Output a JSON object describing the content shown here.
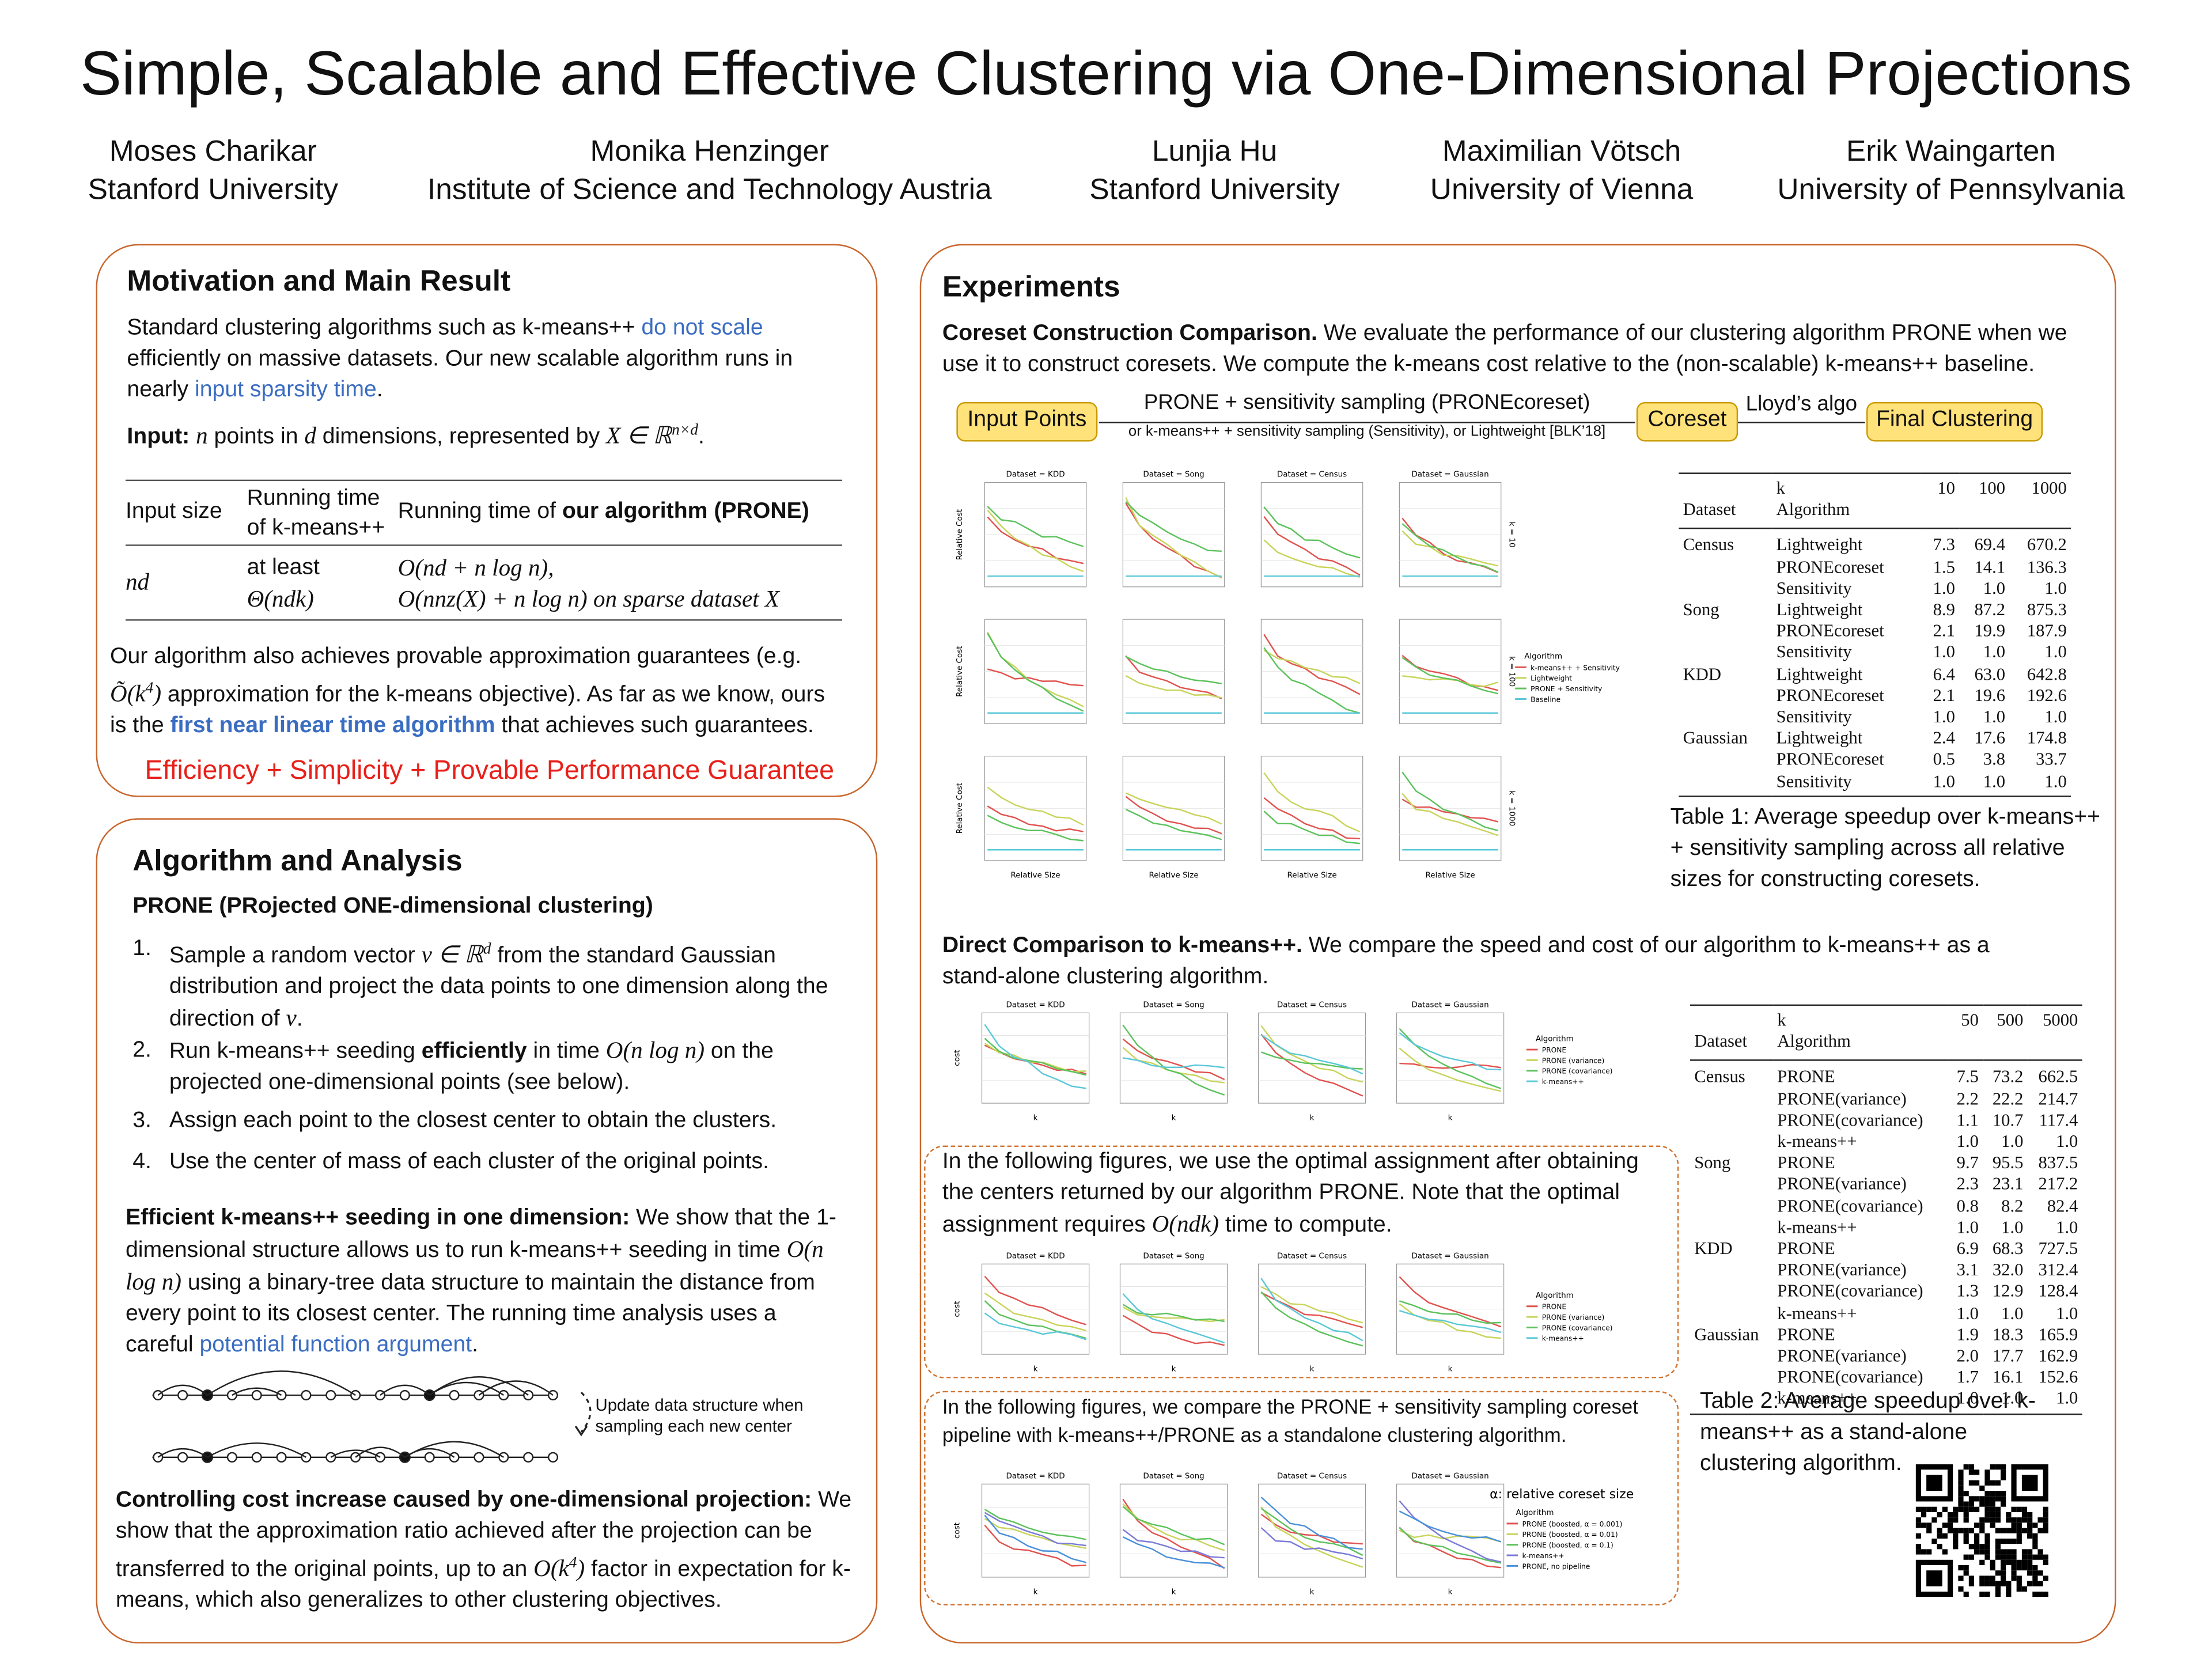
{
  "title": "Simple, Scalable and Effective Clustering via One-Dimensional Projections",
  "authors": [
    {
      "name": "Moses Charikar",
      "affiliation": "Stanford University"
    },
    {
      "name": "Monika Henzinger",
      "affiliation": "Institute of Science and Technology Austria"
    },
    {
      "name": "Lunjia Hu",
      "affiliation": "Stanford University"
    },
    {
      "name": "Maximilian Vötsch",
      "affiliation": "University of Vienna"
    },
    {
      "name": "Erik Waingarten",
      "affiliation": "University of Pennsylvania"
    }
  ],
  "motivation": {
    "heading": "Motivation and Main Result",
    "intro": [
      "Standard clustering algorithms such as k-means++ ",
      "do not scale",
      " efficiently on massive datasets. Our new scalable algorithm runs in nearly ",
      "input sparsity time",
      "."
    ],
    "input": [
      "Input: ",
      "n",
      " points in ",
      "d",
      " dimensions, represented by ",
      "X ∈ ℝ",
      "n×d",
      "."
    ],
    "runtime_table": {
      "header": [
        [
          "Input size"
        ],
        [
          "Running time",
          "of k-means++"
        ],
        [
          "Running time of ",
          "our algorithm (PRONE)"
        ]
      ],
      "row": [
        [
          "nd"
        ],
        [
          "at least",
          "Θ(ndk)"
        ],
        [
          "O(nd + n log n),",
          "O(nnz(X) + n log n) on sparse dataset X"
        ]
      ]
    },
    "guarantee": [
      "Our algorithm also achieves provable approximation guarantees (e.g. ",
      "Õ(k",
      "4",
      ")",
      " approximation for the k-means objective). As far as we know, ours is the ",
      "first near linear time algorithm",
      " that achieves such guarantees."
    ],
    "tagline": "Efficiency + Simplicity + Provable Performance Guarantee"
  },
  "algorithm": {
    "heading": "Algorithm and Analysis",
    "subheading": "PRONE (PRojected ONE-dimensional clustering)",
    "steps": [
      {
        "marker": "1.",
        "parts": [
          "Sample a random vector ",
          "v ∈ ℝ",
          "d",
          " from the standard Gaussian distribution and project the data points to one dimension along the direction of ",
          "v",
          "."
        ]
      },
      {
        "marker": "2.",
        "parts": [
          "Run k-means++ seeding ",
          "efficiently",
          " in time ",
          "O(n log n)",
          " on the projected one-dimensional points (see below)."
        ]
      },
      {
        "marker": "3.",
        "parts": [
          "Assign each point to the closest center to obtain the clusters."
        ]
      },
      {
        "marker": "4.",
        "parts": [
          "Use the center of mass of each cluster of the original points."
        ]
      }
    ],
    "efficient": [
      "Efficient k-means++ seeding in one dimension:",
      " We show that the 1-dimensional structure allows us to run k-means++ seeding in time ",
      "O(n log n)",
      " using a binary-tree data structure to maintain the distance from every point to its closest center. The running time analysis uses a careful ",
      "potential function argument",
      "."
    ],
    "diagram_note": "Update data structure when sampling each new center",
    "controlling": [
      "Controlling cost increase caused by one-dimensional projection:",
      " We show that the approximation ratio achieved after the projection can be transferred to the original points, up to an ",
      "O(k",
      "4",
      ")",
      " factor in expectation for k-means, which also generalizes to other clustering objectives."
    ]
  },
  "experiments": {
    "heading": "Experiments",
    "coreset": [
      "Coreset Construction Comparison.",
      " We evaluate the performance of our clustering algorithm PRONE when we use it to construct coresets. We compute the k-means cost relative to the (non-scalable) k-means++ baseline."
    ],
    "pipeline": {
      "input": "Input Points",
      "step1": "PRONE + sensitivity sampling (PRONEcoreset)",
      "step1_alt": "or k-means++ + sensitivity sampling (Sensitivity), or Lightweight [BLK’18]",
      "coreset": "Coreset",
      "step2": "Lloyd’s algo",
      "output": "Final Clustering"
    },
    "figure1": {
      "panel_titles": [
        "Dataset = KDD",
        "Dataset = Song",
        "Dataset = Census",
        "Dataset = Gaussian"
      ],
      "row_labels": [
        "k = 10",
        "k = 100",
        "k = 1000"
      ],
      "xlabel": "Relative Size",
      "ylabel": "Relative Cost",
      "legend_title": "Algorithm",
      "legend": [
        "k-means++ + Sensitivity",
        "Lightweight",
        "PRONE + Sensitivity",
        "Baseline"
      ]
    },
    "table1": {
      "k_label": "k",
      "ks": [
        "10",
        "100",
        "1000"
      ],
      "dataset_label": "Dataset",
      "algorithm_label": "Algorithm",
      "groups": [
        {
          "dataset": "Census",
          "rows": [
            [
              "Lightweight",
              "7.3",
              "69.4",
              "670.2"
            ],
            [
              "PRONEcoreset",
              "1.5",
              "14.1",
              "136.3"
            ],
            [
              "Sensitivity",
              "1.0",
              "1.0",
              "1.0"
            ]
          ]
        },
        {
          "dataset": "Song",
          "rows": [
            [
              "Lightweight",
              "8.9",
              "87.2",
              "875.3"
            ],
            [
              "PRONEcoreset",
              "2.1",
              "19.9",
              "187.9"
            ],
            [
              "Sensitivity",
              "1.0",
              "1.0",
              "1.0"
            ]
          ]
        },
        {
          "dataset": "KDD",
          "rows": [
            [
              "Lightweight",
              "6.4",
              "63.0",
              "642.8"
            ],
            [
              "PRONEcoreset",
              "2.1",
              "19.6",
              "192.6"
            ],
            [
              "Sensitivity",
              "1.0",
              "1.0",
              "1.0"
            ]
          ]
        },
        {
          "dataset": "Gaussian",
          "rows": [
            [
              "Lightweight",
              "2.4",
              "17.6",
              "174.8"
            ],
            [
              "PRONEcoreset",
              "0.5",
              "3.8",
              "33.7"
            ],
            [
              "Sensitivity",
              "1.0",
              "1.0",
              "1.0"
            ]
          ]
        }
      ]
    },
    "caption1": "Table 1: Average speedup over k-means++ + sensitivity sampling across all relative sizes for constructing coresets.",
    "direct": [
      "Direct Comparison to k-means++.",
      " We compare the speed and cost of our algorithm to k-means++ as a stand-alone clustering algorithm."
    ],
    "figure2": {
      "panel_titles": [
        "Dataset = KDD",
        "Dataset = Song",
        "Dataset = Census",
        "Dataset = Gaussian"
      ],
      "xlabel": "k",
      "ylabel": "cost",
      "legend_title": "Algorithm",
      "legend": [
        "PRONE",
        "PRONE (variance)",
        "PRONE (covariance)",
        "k-means++"
      ]
    },
    "note1": [
      "In the following figures, we use the optimal assignment after obtaining the centers returned by our algorithm PRONE. Note that the optimal assignment requires ",
      "O(ndk)",
      " time to compute."
    ],
    "figure3": {
      "panel_titles": [
        "Dataset = KDD",
        "Dataset = Song",
        "Dataset = Census",
        "Dataset = Gaussian"
      ],
      "xlabel": "k",
      "ylabel": "cost",
      "legend_title": "Algorithm",
      "legend": [
        "PRONE",
        "PRONE (variance)",
        "PRONE (covariance)",
        "k-means++"
      ]
    },
    "note2": "In the following figures, we compare the PRONE + sensitivity sampling coreset pipeline with k-means++/PRONE as a standalone clustering algorithm.",
    "figure4": {
      "panel_titles": [
        "Dataset = KDD",
        "Dataset = Song",
        "Dataset = Census",
        "Dataset = Gaussian"
      ],
      "xlabel": "k",
      "ylabel": "cost",
      "legend_title": "Algorithm",
      "legend": [
        "PRONE (boosted, α = 0.001)",
        "PRONE (boosted, α = 0.01)",
        "PRONE (boosted, α = 0.1)",
        "k-means++",
        "PRONE, no pipeline"
      ],
      "alpha_note": "α:  relative coreset size"
    },
    "table2": {
      "k_label": "k",
      "ks": [
        "50",
        "500",
        "5000"
      ],
      "dataset_label": "Dataset",
      "algorithm_label": "Algorithm",
      "groups": [
        {
          "dataset": "Census",
          "rows": [
            [
              "PRONE",
              "7.5",
              "73.2",
              "662.5"
            ],
            [
              "PRONE(variance)",
              "2.2",
              "22.2",
              "214.7"
            ],
            [
              "PRONE(covariance)",
              "1.1",
              "10.7",
              "117.4"
            ],
            [
              "k-means++",
              "1.0",
              "1.0",
              "1.0"
            ]
          ]
        },
        {
          "dataset": "Song",
          "rows": [
            [
              "PRONE",
              "9.7",
              "95.5",
              "837.5"
            ],
            [
              "PRONE(variance)",
              "2.3",
              "23.1",
              "217.2"
            ],
            [
              "PRONE(covariance)",
              "0.8",
              "8.2",
              "82.4"
            ],
            [
              "k-means++",
              "1.0",
              "1.0",
              "1.0"
            ]
          ]
        },
        {
          "dataset": "KDD",
          "rows": [
            [
              "PRONE",
              "6.9",
              "68.3",
              "727.5"
            ],
            [
              "PRONE(variance)",
              "3.1",
              "32.0",
              "312.4"
            ],
            [
              "PRONE(covariance)",
              "1.3",
              "12.9",
              "128.4"
            ],
            [
              "k-means++",
              "1.0",
              "1.0",
              "1.0"
            ]
          ]
        },
        {
          "dataset": "Gaussian",
          "rows": [
            [
              "PRONE",
              "1.9",
              "18.3",
              "165.9"
            ],
            [
              "PRONE(variance)",
              "2.0",
              "17.7",
              "162.9"
            ],
            [
              "PRONE(covariance)",
              "1.7",
              "16.1",
              "152.6"
            ],
            [
              "k-means++",
              "1.0",
              "1.0",
              "1.0"
            ]
          ]
        }
      ]
    },
    "caption2": "Table 2: Average speedup over k-means++ as a stand-alone clustering algorithm."
  }
}
